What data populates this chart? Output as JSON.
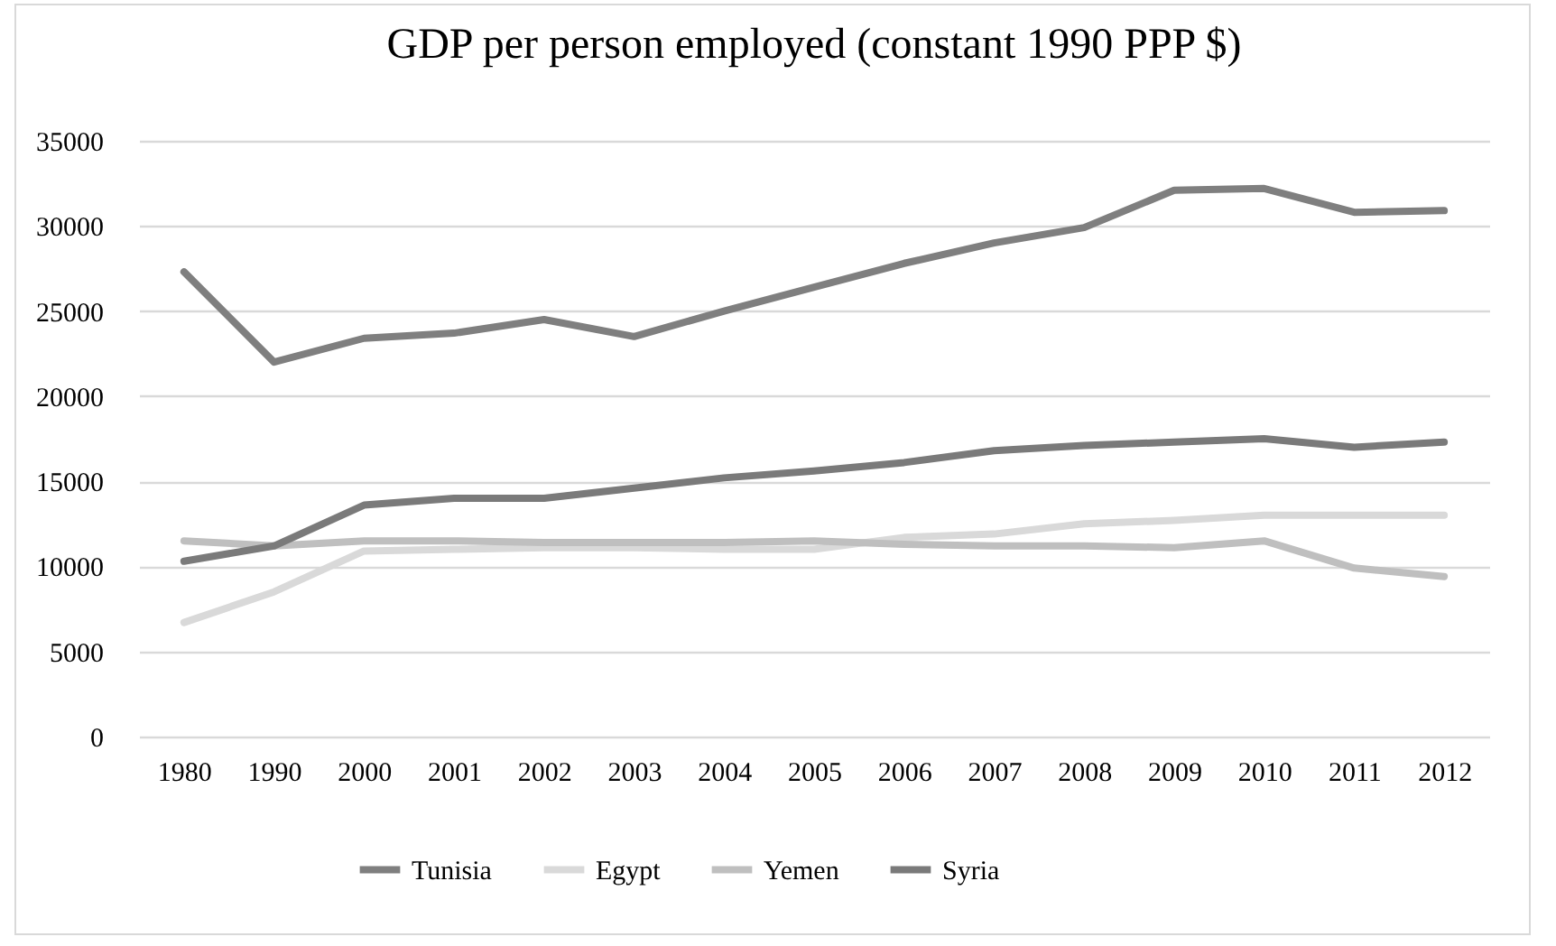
{
  "chart_data": {
    "type": "line",
    "title": "GDP per person employed (constant 1990 PPP $)",
    "categories": [
      "1980",
      "1990",
      "2000",
      "2001",
      "2002",
      "2003",
      "2004",
      "2005",
      "2006",
      "2007",
      "2008",
      "2009",
      "2010",
      "2011",
      "2012"
    ],
    "series": [
      {
        "name": "Tunisia",
        "color": "#7f7f7f",
        "values": [
          27300,
          22000,
          23400,
          23700,
          24500,
          23500,
          25000,
          26400,
          27800,
          29000,
          29900,
          32100,
          32200,
          30800,
          30900
        ]
      },
      {
        "name": "Egypt",
        "color": "#d9d9d9",
        "values": [
          6700,
          8500,
          10900,
          11000,
          11100,
          11100,
          11000,
          11000,
          11700,
          11900,
          12500,
          12700,
          13000,
          13000,
          13000
        ]
      },
      {
        "name": "Yemen",
        "color": "#bfbfbf",
        "values": [
          11500,
          11200,
          11500,
          11500,
          11400,
          11400,
          11400,
          11500,
          11300,
          11200,
          11200,
          11100,
          11500,
          9900,
          9400
        ]
      },
      {
        "name": "Syria",
        "color": "#7a7a7a",
        "values": [
          10300,
          11200,
          13600,
          14000,
          14000,
          14600,
          15200,
          15600,
          16100,
          16800,
          17100,
          17300,
          17500,
          17000,
          17300
        ]
      }
    ],
    "ylim": [
      0,
      35000
    ],
    "yticks": [
      0,
      5000,
      10000,
      15000,
      20000,
      25000,
      30000,
      35000
    ],
    "grid": "y",
    "legend": "bottom"
  }
}
